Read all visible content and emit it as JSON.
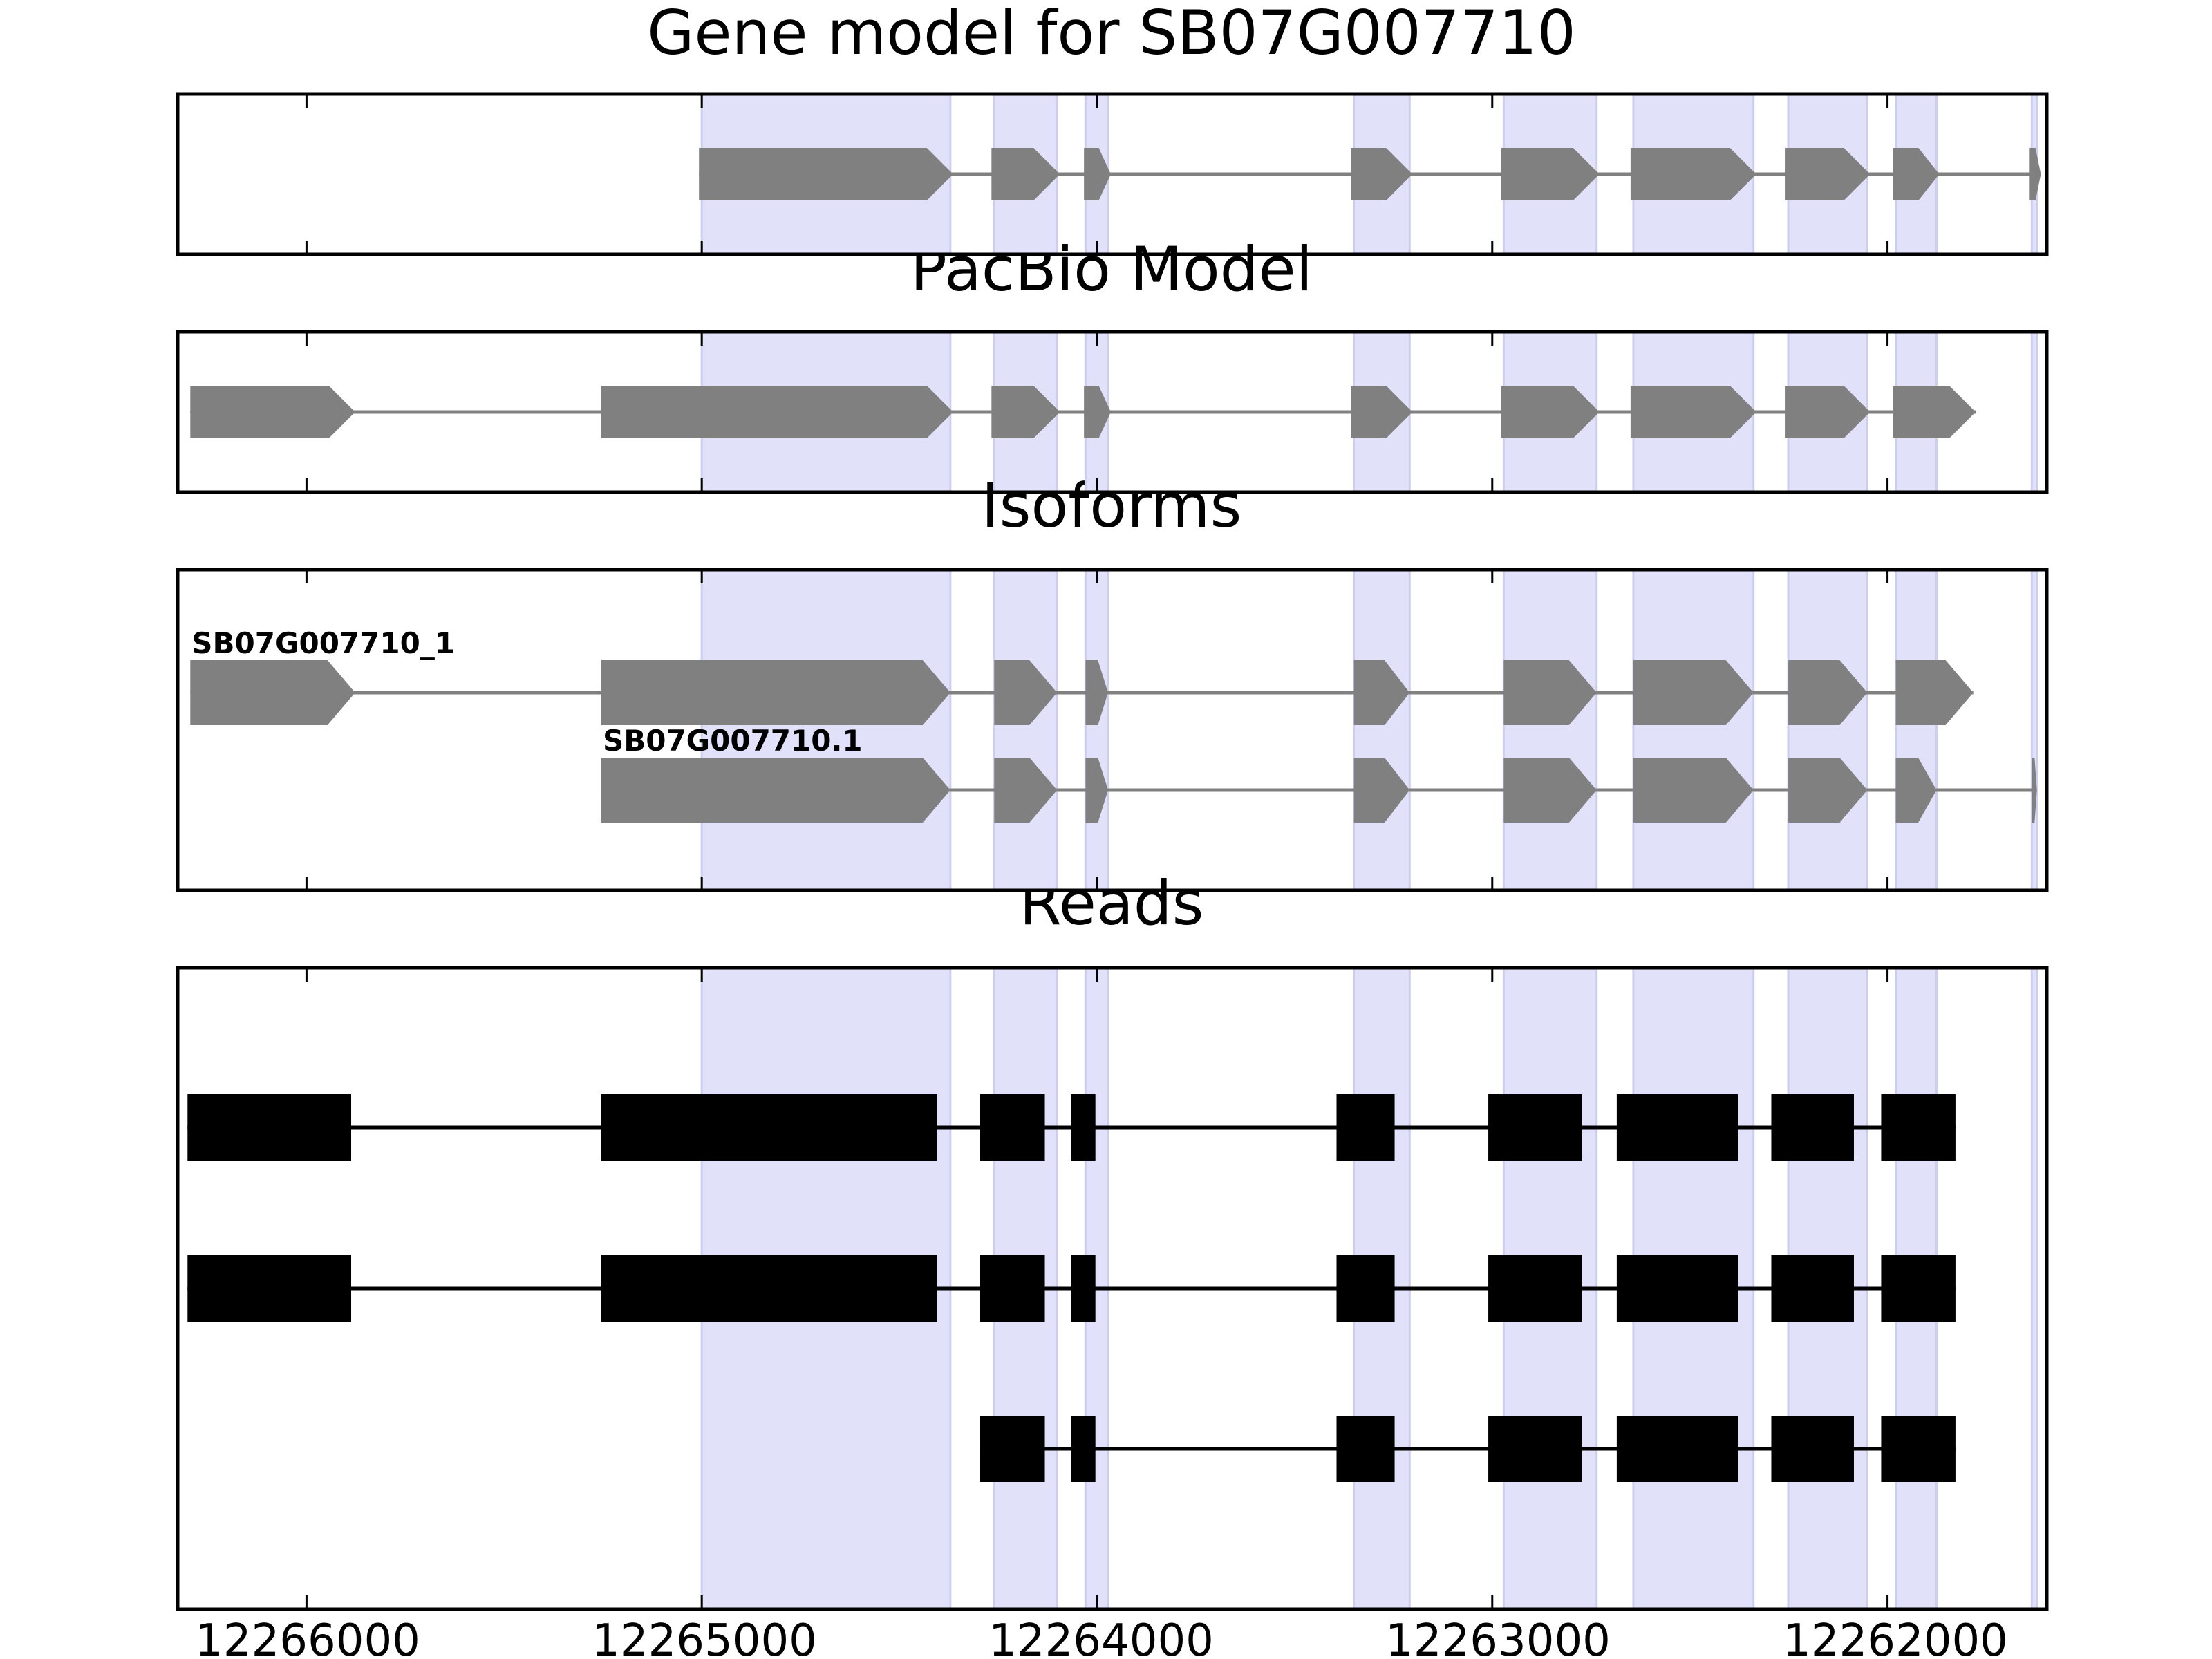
{
  "chart_data": {
    "type": "gene-track",
    "x_reversed": true,
    "xlim": [
      12266326,
      12261597
    ],
    "xticks": [
      12266000,
      12265000,
      12264000,
      12263000,
      12262000
    ],
    "xtick_labels": [
      "12266000",
      "12265000",
      "12264000",
      "12263000",
      "12262000"
    ],
    "highlight_color": "#e1e1f9",
    "highlight_regions": [
      [
        12265000,
        12264371
      ],
      [
        12264260,
        12264101
      ],
      [
        12264029,
        12263972
      ],
      [
        12263350,
        12263209
      ],
      [
        12262971,
        12262736
      ],
      [
        12262643,
        12262339
      ],
      [
        12262251,
        12262051
      ],
      [
        12261979,
        12261876
      ],
      [
        12261635,
        12261622
      ]
    ],
    "panels": [
      {
        "title": "Gene model for SB07G007710",
        "style": "arrow",
        "color": "#808080",
        "rows": [
          {
            "label": "",
            "exons": [
              [
                12265007,
                12264364
              ],
              [
                12264267,
                12264094
              ],
              [
                12264033,
                12263965
              ],
              [
                12263358,
                12263202
              ],
              [
                12262978,
                12262729
              ],
              [
                12262650,
                12262332
              ],
              [
                12262258,
                12262044
              ],
              [
                12261986,
                12261869
              ],
              [
                12261642,
                12261612
              ]
            ]
          }
        ]
      },
      {
        "title": "PacBio Model",
        "style": "arrow",
        "color": "#808080",
        "rows": [
          {
            "label": "",
            "exons": [
              [
                12266294,
                12265877
              ],
              [
                12265254,
                12264364
              ],
              [
                12264267,
                12264094
              ],
              [
                12264033,
                12263965
              ],
              [
                12263358,
                12263202
              ],
              [
                12262978,
                12262729
              ],
              [
                12262650,
                12262332
              ],
              [
                12262258,
                12262044
              ],
              [
                12261986,
                12261777
              ]
            ]
          }
        ]
      },
      {
        "title": "Isoforms",
        "style": "arrow",
        "color": "#808080",
        "rows": [
          {
            "label": "SB07G007710_1",
            "exons": [
              [
                12266294,
                12265877
              ],
              [
                12265254,
                12264371
              ],
              [
                12264260,
                12264101
              ],
              [
                12264029,
                12263972
              ],
              [
                12263350,
                12263209
              ],
              [
                12262971,
                12262736
              ],
              [
                12262643,
                12262339
              ],
              [
                12262251,
                12262051
              ],
              [
                12261979,
                12261783
              ]
            ]
          },
          {
            "label": "SB07G007710.1",
            "exons": [
              [
                12265254,
                12264371
              ],
              [
                12264260,
                12264101
              ],
              [
                12264029,
                12263972
              ],
              [
                12263350,
                12263209
              ],
              [
                12262971,
                12262736
              ],
              [
                12262643,
                12262339
              ],
              [
                12262251,
                12262051
              ],
              [
                12261979,
                12261876
              ],
              [
                12261635,
                12261622
              ]
            ]
          }
        ]
      },
      {
        "title": "Reads",
        "style": "box",
        "color": "#000000",
        "rows": [
          {
            "label": "",
            "exons": [
              [
                12266301,
                12265887
              ],
              [
                12265254,
                12264405
              ],
              [
                12264296,
                12264132
              ],
              [
                12264065,
                12264004
              ],
              [
                12263394,
                12263247
              ],
              [
                12263010,
                12262773
              ],
              [
                12262685,
                12262378
              ],
              [
                12262294,
                12262085
              ],
              [
                12262016,
                12261828
              ]
            ]
          },
          {
            "label": "",
            "exons": [
              [
                12266301,
                12265887
              ],
              [
                12265254,
                12264405
              ],
              [
                12264296,
                12264132
              ],
              [
                12264065,
                12264004
              ],
              [
                12263394,
                12263247
              ],
              [
                12263010,
                12262773
              ],
              [
                12262685,
                12262378
              ],
              [
                12262294,
                12262085
              ],
              [
                12262016,
                12261828
              ]
            ]
          },
          {
            "label": "",
            "exons": [
              [
                12264296,
                12264132
              ],
              [
                12264065,
                12264004
              ],
              [
                12263394,
                12263247
              ],
              [
                12263010,
                12262773
              ],
              [
                12262685,
                12262378
              ],
              [
                12262294,
                12262085
              ],
              [
                12262016,
                12261828
              ]
            ]
          }
        ]
      }
    ]
  }
}
